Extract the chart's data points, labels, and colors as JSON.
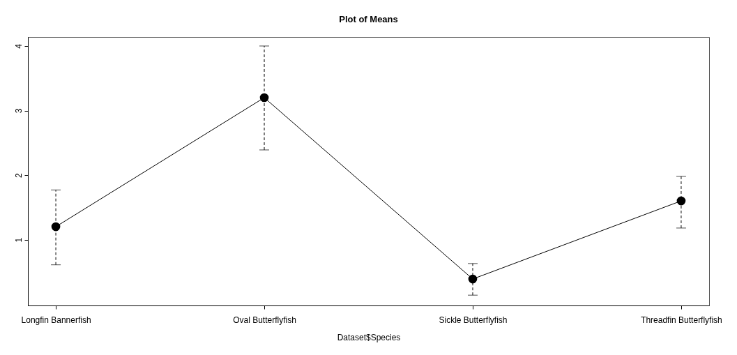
{
  "chart_data": {
    "type": "line",
    "title": "Plot of Means",
    "xlabel": "Dataset$Species",
    "categories": [
      "Longfin Bannerfish",
      "Oval Butterflyfish",
      "Sickle Butterflyfish",
      "Threadfin Butterflyfish"
    ],
    "series": [
      {
        "color": "#000000",
        "values": [
          1.2,
          3.2,
          0.39,
          1.6
        ],
        "errors": [
          [
            0.61,
            1.77
          ],
          [
            2.39,
            4.0
          ],
          [
            0.14,
            0.63
          ],
          [
            1.18,
            1.98
          ]
        ]
      }
    ],
    "ylim": [
      -0.02,
      4.14
    ],
    "yticks": [
      1,
      2,
      3,
      4
    ],
    "grid": false,
    "marker": "circle",
    "line_style": "solid"
  }
}
